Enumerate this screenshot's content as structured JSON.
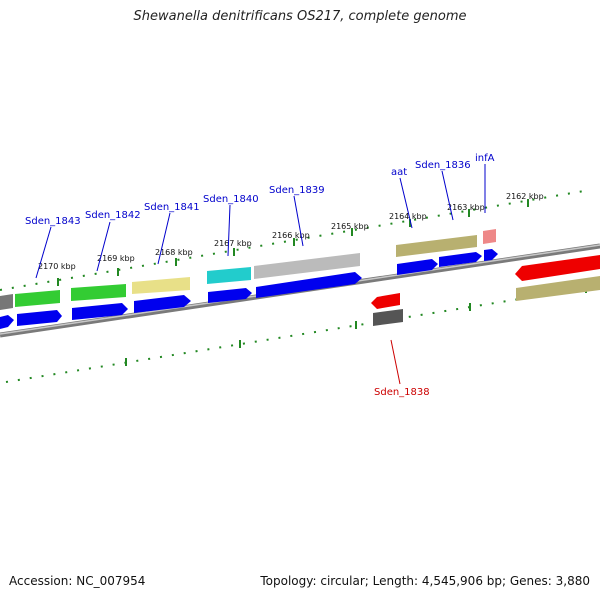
{
  "title": "Shewanella denitrificans OS217, complete genome",
  "footer": {
    "accession": "Accession: NC_007954",
    "topology": "Topology: circular; Length: 4,545,906 bp; Genes: 3,880"
  },
  "colors": {
    "label_forward": "#0000cc",
    "label_reverse": "#cc0000",
    "ruler": "#228822",
    "backbone": "#888888",
    "cds": "#0000ee"
  },
  "ruler_kbp": [
    "2170 kbp",
    "2169 kbp",
    "2168 kbp",
    "2167 kbp",
    "2166 kbp",
    "2165 kbp",
    "2164 kbp",
    "2163 kbp",
    "2162 kbp"
  ],
  "gene_labels": [
    {
      "id": "g1843",
      "text": "Sden_1843",
      "strand": "forward"
    },
    {
      "id": "g1842",
      "text": "Sden_1842",
      "strand": "forward"
    },
    {
      "id": "g1841",
      "text": "Sden_1841",
      "strand": "forward"
    },
    {
      "id": "g1840",
      "text": "Sden_1840",
      "strand": "forward"
    },
    {
      "id": "g1839",
      "text": "Sden_1839",
      "strand": "forward"
    },
    {
      "id": "gaat",
      "text": "aat",
      "strand": "forward"
    },
    {
      "id": "g1836",
      "text": "Sden_1836",
      "strand": "forward"
    },
    {
      "id": "ginfA",
      "text": "infA",
      "strand": "forward"
    },
    {
      "id": "g1838",
      "text": "Sden_1838",
      "strand": "reverse"
    }
  ]
}
